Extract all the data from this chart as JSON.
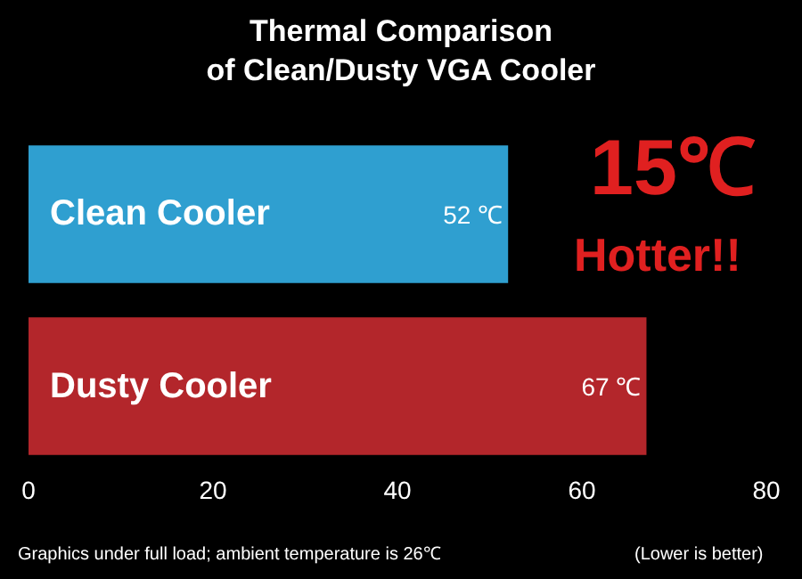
{
  "chart_data": {
    "type": "bar",
    "orientation": "horizontal",
    "title": "Thermal Comparison\nof Clean/Dusty VGA Cooler",
    "categories": [
      "Clean Cooler",
      "Dusty Cooler"
    ],
    "values": [
      52,
      67
    ],
    "colors": [
      "#2f9fd0",
      "#b3262b"
    ],
    "value_labels": [
      "52 ℃",
      "67 ℃"
    ],
    "xlim": [
      0,
      80
    ],
    "xticks": [
      0,
      20,
      40,
      60,
      80
    ],
    "tick_labels": "x",
    "grid": false,
    "legend": false,
    "annotations": [
      "15℃",
      "Hotter!!",
      "Graphics under full load; ambient temperature is 26℃",
      "(Lower is better)"
    ]
  }
}
